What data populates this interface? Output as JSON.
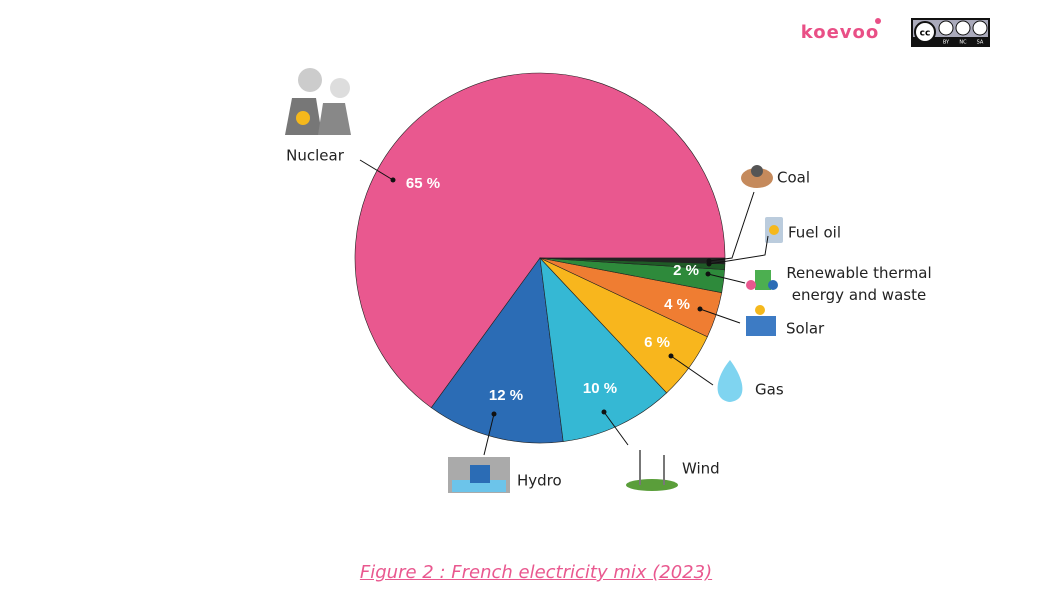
{
  "chart_data": {
    "type": "pie",
    "categories": [
      "Nuclear",
      "Hydro",
      "Wind",
      "Gas",
      "Solar",
      "Renewable thermal energy and waste",
      "Fuel oil",
      "Coal"
    ],
    "values": [
      65,
      12,
      10,
      6,
      4,
      2,
      0.5,
      0.5
    ],
    "value_labels": [
      "65 %",
      "12 %",
      "10 %",
      "6 %",
      "4 %",
      "2 %",
      null,
      null
    ],
    "colors": [
      "#e9588f",
      "#2b6cb5",
      "#35b8d4",
      "#f8b61d",
      "#ef7d32",
      "#2e8a3b",
      "#1f5a26",
      "#222222"
    ],
    "caption": "Figure 2 : French electricity mix (2023)",
    "logo": "koevoo",
    "license": [
      "cc",
      "BY",
      "NC",
      "SA"
    ]
  }
}
